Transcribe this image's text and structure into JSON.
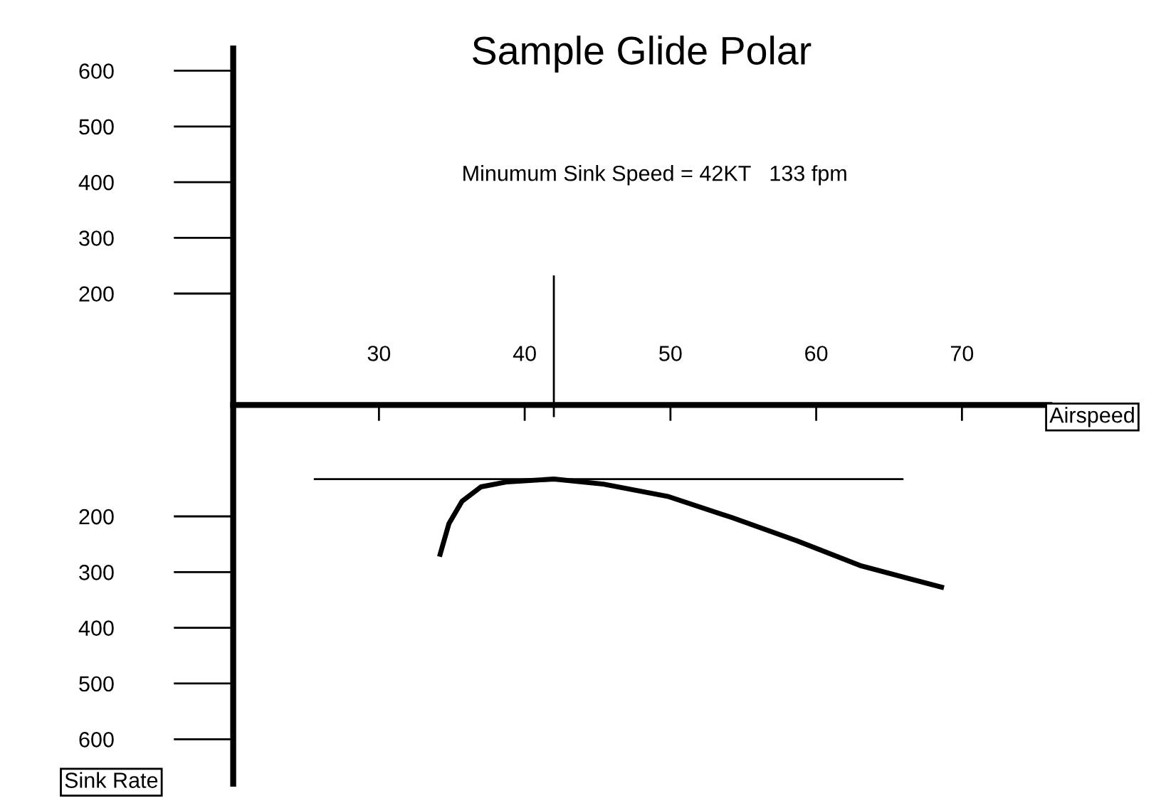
{
  "chart_data": {
    "type": "line",
    "title": "Sample Glide Polar",
    "xlabel": "Airspeed",
    "ylabel": "Sink Rate",
    "annotations": [
      "Minumum Sink Speed = 42KT   133 fpm"
    ],
    "series": [
      {
        "color": "#000000",
        "x": [
          34.2,
          34.8,
          35.7,
          37.0,
          38.8,
          42.0,
          45.4,
          49.8,
          54.2,
          58.7,
          63.1,
          68.6
        ],
        "values": [
          268,
          213,
          173,
          147,
          138,
          133,
          142,
          164,
          202,
          244,
          289,
          327
        ]
      }
    ],
    "xlim": [
      20,
      76
    ],
    "xticks": [
      30,
      40,
      50,
      60,
      70
    ],
    "ylim": [
      680,
      -640
    ],
    "yticks": [
      {
        "value": -600,
        "label": "600"
      },
      {
        "value": -500,
        "label": "500"
      },
      {
        "value": -400,
        "label": "400"
      },
      {
        "value": -300,
        "label": "300"
      },
      {
        "value": -200,
        "label": "200"
      },
      200,
      300,
      400,
      500,
      600
    ],
    "ref_lines": [
      {
        "axis": "x",
        "value": 42
      },
      {
        "axis": "y",
        "value": 133
      }
    ],
    "grid": false,
    "legend": false,
    "marker": "none",
    "line_style": "solid"
  }
}
